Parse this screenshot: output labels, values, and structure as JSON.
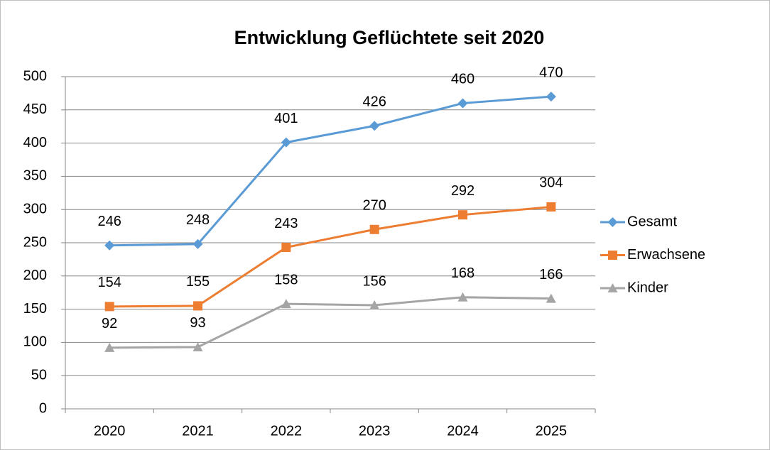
{
  "chart_data": {
    "type": "line",
    "title": "Entwicklung Geflüchtete seit 2020",
    "categories": [
      "2020",
      "2021",
      "2022",
      "2023",
      "2024",
      "2025"
    ],
    "series": [
      {
        "name": "Gesamt",
        "color": "#5b9bd5",
        "marker": "diamond",
        "values": [
          246,
          248,
          401,
          426,
          460,
          470
        ]
      },
      {
        "name": "Erwachsene",
        "color": "#ed7d31",
        "marker": "square",
        "values": [
          154,
          155,
          243,
          270,
          292,
          304
        ]
      },
      {
        "name": "Kinder",
        "color": "#a5a5a5",
        "marker": "triangle",
        "values": [
          92,
          93,
          158,
          156,
          168,
          166
        ]
      }
    ],
    "ylim": [
      0,
      500
    ],
    "yticks": [
      0,
      50,
      100,
      150,
      200,
      250,
      300,
      350,
      400,
      450,
      500
    ],
    "grid": true,
    "legend": "right",
    "data_labels": true
  }
}
